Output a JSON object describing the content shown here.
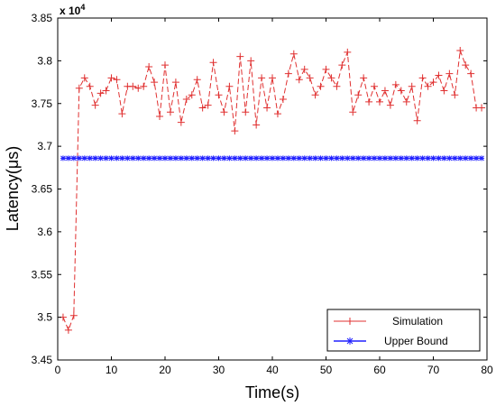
{
  "chart_data": {
    "type": "line",
    "xlabel": "Time(s)",
    "ylabel": "Latency(μs)",
    "y_exponent_label": "x 10",
    "y_exponent_power": "4",
    "xlim": [
      0,
      80
    ],
    "ylim": [
      3.45,
      3.85
    ],
    "y_multiplier": 10000,
    "x_ticks": [
      "0",
      "10",
      "20",
      "30",
      "40",
      "50",
      "60",
      "70",
      "80"
    ],
    "x_tick_values": [
      0,
      10,
      20,
      30,
      40,
      50,
      60,
      70,
      80
    ],
    "y_ticks": [
      "3.45",
      "3.5",
      "3.55",
      "3.6",
      "3.65",
      "3.7",
      "3.75",
      "3.8",
      "3.85"
    ],
    "y_tick_values": [
      3.45,
      3.5,
      3.55,
      3.6,
      3.65,
      3.7,
      3.75,
      3.8,
      3.85
    ],
    "grid": false,
    "legend_position": "bottom-right",
    "series": [
      {
        "name": "Simulation",
        "color": "#e03030",
        "marker": "plus",
        "line_style": "dashed",
        "x": [
          1,
          2,
          3,
          4,
          5,
          6,
          7,
          8,
          9,
          10,
          11,
          12,
          13,
          14,
          15,
          16,
          17,
          18,
          19,
          20,
          21,
          22,
          23,
          24,
          25,
          26,
          27,
          28,
          29,
          30,
          31,
          32,
          33,
          34,
          35,
          36,
          37,
          38,
          39,
          40,
          41,
          42,
          43,
          44,
          45,
          46,
          47,
          48,
          49,
          50,
          51,
          52,
          53,
          54,
          55,
          56,
          57,
          58,
          59,
          60,
          61,
          62,
          63,
          64,
          65,
          66,
          67,
          68,
          69,
          70,
          71,
          72,
          73,
          74,
          75,
          76,
          77,
          78,
          79
        ],
        "values": [
          3.5,
          3.485,
          3.502,
          3.768,
          3.78,
          3.77,
          3.748,
          3.762,
          3.765,
          3.78,
          3.778,
          3.738,
          3.77,
          3.77,
          3.768,
          3.77,
          3.793,
          3.775,
          3.735,
          3.795,
          3.74,
          3.775,
          3.728,
          3.755,
          3.76,
          3.778,
          3.745,
          3.748,
          3.798,
          3.76,
          3.74,
          3.77,
          3.718,
          3.805,
          3.74,
          3.8,
          3.725,
          3.78,
          3.745,
          3.78,
          3.738,
          3.755,
          3.785,
          3.808,
          3.778,
          3.79,
          3.78,
          3.76,
          3.77,
          3.79,
          3.78,
          3.77,
          3.795,
          3.81,
          3.74,
          3.76,
          3.78,
          3.752,
          3.77,
          3.752,
          3.765,
          3.748,
          3.772,
          3.765,
          3.752,
          3.77,
          3.73,
          3.78,
          3.77,
          3.775,
          3.783,
          3.765,
          3.785,
          3.76,
          3.812,
          3.795,
          3.785,
          3.745,
          3.745
        ]
      },
      {
        "name": "Upper Bound",
        "color": "#2020ff",
        "marker": "asterisk",
        "line_style": "solid",
        "x": [
          1,
          2,
          3,
          4,
          5,
          6,
          7,
          8,
          9,
          10,
          11,
          12,
          13,
          14,
          15,
          16,
          17,
          18,
          19,
          20,
          21,
          22,
          23,
          24,
          25,
          26,
          27,
          28,
          29,
          30,
          31,
          32,
          33,
          34,
          35,
          36,
          37,
          38,
          39,
          40,
          41,
          42,
          43,
          44,
          45,
          46,
          47,
          48,
          49,
          50,
          51,
          52,
          53,
          54,
          55,
          56,
          57,
          58,
          59,
          60,
          61,
          62,
          63,
          64,
          65,
          66,
          67,
          68,
          69,
          70,
          71,
          72,
          73,
          74,
          75,
          76,
          77,
          78,
          79
        ],
        "values": [
          3.686,
          3.686,
          3.686,
          3.686,
          3.686,
          3.686,
          3.686,
          3.686,
          3.686,
          3.686,
          3.686,
          3.686,
          3.686,
          3.686,
          3.686,
          3.686,
          3.686,
          3.686,
          3.686,
          3.686,
          3.686,
          3.686,
          3.686,
          3.686,
          3.686,
          3.686,
          3.686,
          3.686,
          3.686,
          3.686,
          3.686,
          3.686,
          3.686,
          3.686,
          3.686,
          3.686,
          3.686,
          3.686,
          3.686,
          3.686,
          3.686,
          3.686,
          3.686,
          3.686,
          3.686,
          3.686,
          3.686,
          3.686,
          3.686,
          3.686,
          3.686,
          3.686,
          3.686,
          3.686,
          3.686,
          3.686,
          3.686,
          3.686,
          3.686,
          3.686,
          3.686,
          3.686,
          3.686,
          3.686,
          3.686,
          3.686,
          3.686,
          3.686,
          3.686,
          3.686,
          3.686,
          3.686,
          3.686,
          3.686,
          3.686,
          3.686,
          3.686,
          3.686,
          3.686
        ]
      }
    ]
  }
}
